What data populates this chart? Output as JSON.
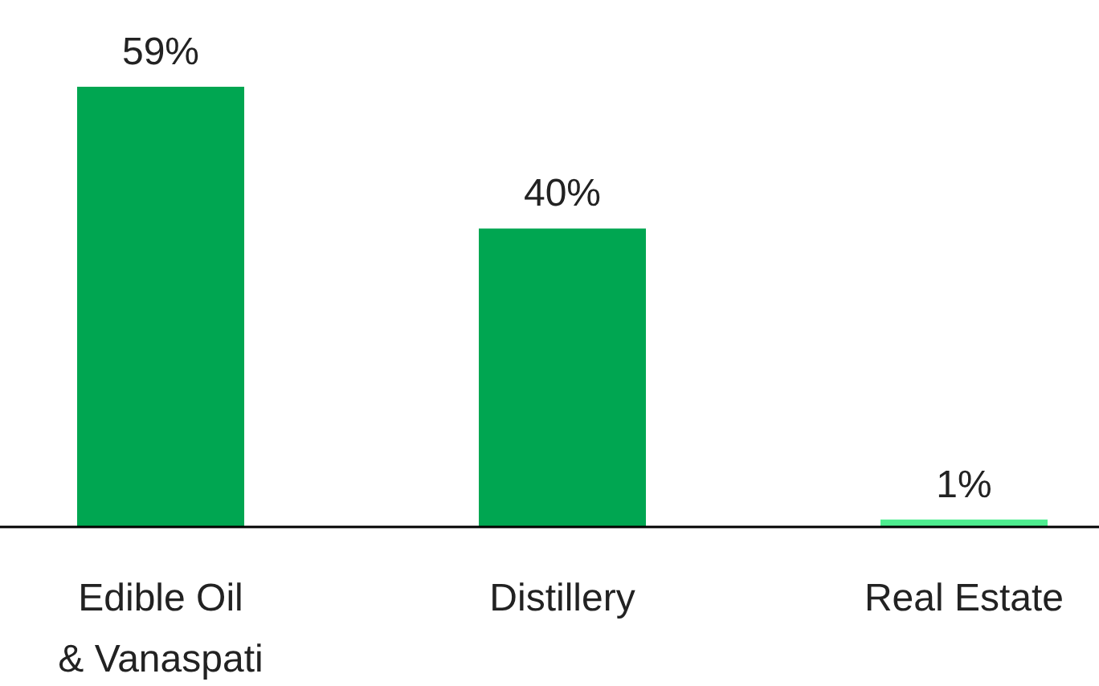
{
  "chart_data": {
    "type": "bar",
    "categories": [
      "Edible Oil & Vanaspati",
      "Distillery",
      "Real Estate"
    ],
    "values": [
      59,
      40,
      1
    ],
    "colors": [
      "#00a651",
      "#00a651",
      "#4ded8f"
    ],
    "value_labels": [
      "59%",
      "40%",
      "1%"
    ]
  }
}
